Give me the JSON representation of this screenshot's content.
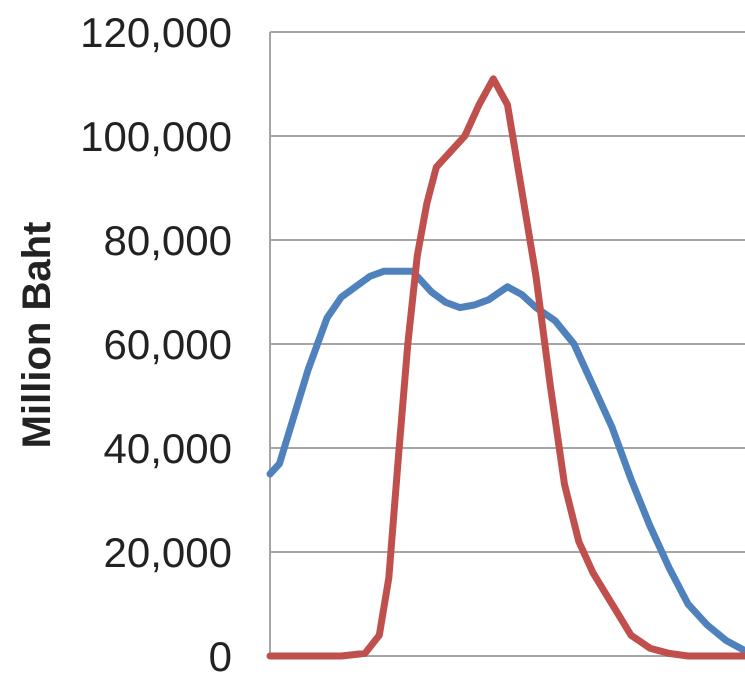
{
  "chart_data": {
    "type": "line",
    "title": "",
    "xlabel": "",
    "ylabel": "Million Baht",
    "ylim": [
      0,
      120000
    ],
    "y_ticks": [
      {
        "value": 0,
        "label": "0"
      },
      {
        "value": 20000,
        "label": "20,000"
      },
      {
        "value": 40000,
        "label": "40,000"
      },
      {
        "value": 60000,
        "label": "60,000"
      },
      {
        "value": 80000,
        "label": "80,000"
      },
      {
        "value": 100000,
        "label": "100,000"
      },
      {
        "value": 120000,
        "label": "120,000"
      }
    ],
    "grid": true,
    "legend": "none",
    "x_range": [
      0,
      1
    ],
    "series": [
      {
        "color": "#4f81bd",
        "x": [
          0,
          0.02,
          0.04,
          0.06,
          0.08,
          0.1,
          0.12,
          0.15,
          0.18,
          0.21,
          0.24,
          0.27,
          0.3,
          0.34,
          0.37,
          0.4,
          0.43,
          0.46,
          0.5,
          0.53,
          0.56,
          0.6,
          0.64,
          0.68,
          0.72,
          0.76,
          0.8,
          0.84,
          0.88,
          0.92,
          0.96,
          1.0
        ],
        "y": [
          35000,
          37000,
          43000,
          49000,
          55000,
          60000,
          65000,
          69000,
          71000,
          73000,
          74000,
          74000,
          74000,
          70000,
          68000,
          67000,
          67500,
          68500,
          71000,
          69500,
          67000,
          64500,
          60000,
          52000,
          44000,
          34000,
          25000,
          17000,
          10000,
          6000,
          3000,
          1000
        ]
      },
      {
        "color": "#c0504d",
        "x": [
          0,
          0.05,
          0.1,
          0.15,
          0.2,
          0.23,
          0.25,
          0.27,
          0.29,
          0.31,
          0.33,
          0.35,
          0.38,
          0.41,
          0.44,
          0.47,
          0.5,
          0.52,
          0.54,
          0.56,
          0.59,
          0.62,
          0.65,
          0.68,
          0.7,
          0.72,
          0.76,
          0.8,
          0.84,
          0.88,
          0.92,
          0.96,
          1.0
        ],
        "y": [
          0,
          0,
          0,
          0,
          500,
          4000,
          15000,
          38000,
          60000,
          77000,
          87000,
          94000,
          97000,
          100000,
          106000,
          111000,
          106000,
          95000,
          84000,
          73000,
          52000,
          33000,
          22000,
          16000,
          13000,
          10000,
          4000,
          1500,
          500,
          0,
          0,
          0,
          0
        ]
      }
    ]
  }
}
